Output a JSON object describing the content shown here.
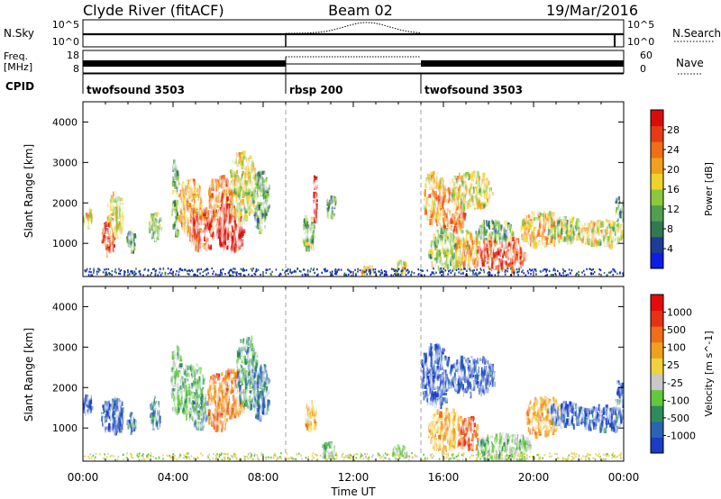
{
  "header": {
    "title": "Clyde River (fitACF)",
    "beam": "Beam 02",
    "date": "19/Mar/2016"
  },
  "noise_panel": {
    "left_label": "N.Sky",
    "left_ticks": [
      "10^5",
      "10^0"
    ],
    "right_ticks": [
      "10^5",
      "10^0"
    ],
    "right_label": "N.Search"
  },
  "freq_panel": {
    "label_line1": "Freq.",
    "label_line2": "[MHz]",
    "left_ticks": [
      "18",
      "8"
    ],
    "right_ticks": [
      "60",
      "0"
    ],
    "right_label": "Nave"
  },
  "cpid_panel": {
    "label": "CPID",
    "segments": [
      {
        "name": "twofsound 3503",
        "start_hour": 0,
        "end_hour": 9
      },
      {
        "name": "rbsp 200",
        "start_hour": 9,
        "end_hour": 15
      },
      {
        "name": "twofsound 3503",
        "start_hour": 15,
        "end_hour": 24
      }
    ]
  },
  "chart_data": [
    {
      "type": "heatmap",
      "name": "power",
      "ylabel": "Slant Range [km]",
      "yticks": [
        "1000",
        "2000",
        "3000",
        "4000"
      ],
      "ylim": [
        180,
        4500
      ],
      "xlim": [
        0,
        24
      ],
      "colorbar": {
        "label": "Power [dB]",
        "ticks": [
          "4",
          "8",
          "12",
          "16",
          "20",
          "24",
          "28"
        ],
        "range": [
          0,
          32
        ],
        "colors": [
          "#0a1ee6",
          "#1e3c96",
          "#327850",
          "#4ea050",
          "#8cc83c",
          "#f0d228",
          "#f0a01e",
          "#f06e14",
          "#e63c14",
          "#dc0a0a"
        ]
      },
      "blobs": [
        {
          "x0": 0.0,
          "x1": 0.35,
          "y0": 1450,
          "y1": 1900,
          "level": 0.55
        },
        {
          "x0": 0.8,
          "x1": 1.4,
          "y0": 800,
          "y1": 1700,
          "level": 0.85
        },
        {
          "x0": 1.1,
          "x1": 1.7,
          "y0": 1200,
          "y1": 2300,
          "level": 0.55
        },
        {
          "x0": 1.9,
          "x1": 2.3,
          "y0": 900,
          "y1": 1400,
          "level": 0.35
        },
        {
          "x0": 2.9,
          "x1": 3.4,
          "y0": 1100,
          "y1": 1800,
          "level": 0.4
        },
        {
          "x0": 3.9,
          "x1": 4.2,
          "y0": 1300,
          "y1": 3100,
          "level": 0.4
        },
        {
          "x0": 4.2,
          "x1": 5.2,
          "y0": 1300,
          "y1": 2600,
          "level": 0.65
        },
        {
          "x0": 4.7,
          "x1": 5.8,
          "y0": 900,
          "y1": 1900,
          "level": 0.85
        },
        {
          "x0": 5.5,
          "x1": 6.6,
          "y0": 1400,
          "y1": 2700,
          "level": 0.75
        },
        {
          "x0": 5.9,
          "x1": 7.1,
          "y0": 900,
          "y1": 2000,
          "level": 0.95
        },
        {
          "x0": 6.5,
          "x1": 7.6,
          "y0": 1600,
          "y1": 3300,
          "level": 0.55
        },
        {
          "x0": 7.5,
          "x1": 8.2,
          "y0": 1300,
          "y1": 2800,
          "level": 0.35
        },
        {
          "x0": 9.7,
          "x1": 10.2,
          "y0": 900,
          "y1": 1700,
          "level": 0.4
        },
        {
          "x0": 10.2,
          "x1": 10.3,
          "y0": 1600,
          "y1": 2700,
          "level": 0.95
        },
        {
          "x0": 10.8,
          "x1": 11.2,
          "y0": 1700,
          "y1": 2200,
          "level": 0.35
        },
        {
          "x0": 12.3,
          "x1": 12.8,
          "y0": 250,
          "y1": 500,
          "level": 0.6
        },
        {
          "x0": 13.8,
          "x1": 14.3,
          "y0": 300,
          "y1": 600,
          "level": 0.5
        },
        {
          "x0": 15.1,
          "x1": 16.0,
          "y0": 1600,
          "y1": 2800,
          "level": 0.65
        },
        {
          "x0": 15.6,
          "x1": 16.9,
          "y0": 1300,
          "y1": 2400,
          "level": 0.75
        },
        {
          "x0": 16.3,
          "x1": 18.1,
          "y0": 1900,
          "y1": 2800,
          "level": 0.55
        },
        {
          "x0": 15.3,
          "x1": 17.3,
          "y0": 400,
          "y1": 1400,
          "level": 0.45
        },
        {
          "x0": 16.5,
          "x1": 17.6,
          "y0": 500,
          "y1": 1300,
          "level": 0.65
        },
        {
          "x0": 17.5,
          "x1": 19.6,
          "y0": 400,
          "y1": 1200,
          "level": 0.85
        },
        {
          "x0": 17.4,
          "x1": 19.0,
          "y0": 1100,
          "y1": 1600,
          "level": 0.35
        },
        {
          "x0": 19.4,
          "x1": 21.2,
          "y0": 1000,
          "y1": 1800,
          "level": 0.65
        },
        {
          "x0": 20.6,
          "x1": 22.1,
          "y0": 1100,
          "y1": 1700,
          "level": 0.45
        },
        {
          "x0": 22.0,
          "x1": 23.9,
          "y0": 1000,
          "y1": 1600,
          "level": 0.55
        },
        {
          "x0": 23.6,
          "x1": 24.0,
          "y0": 1600,
          "y1": 2200,
          "level": 0.3
        }
      ]
    },
    {
      "type": "heatmap",
      "name": "velocity",
      "ylabel": "Slant Range [km]",
      "yticks": [
        "1000",
        "2000",
        "3000",
        "4000"
      ],
      "ylim": [
        180,
        4500
      ],
      "xlim": [
        0,
        24
      ],
      "xlabel": "Time UT",
      "xticks": [
        "00:00",
        "04:00",
        "08:00",
        "12:00",
        "16:00",
        "20:00",
        "00:00"
      ],
      "colorbar": {
        "label": "Velocity [m s^-1]",
        "ticks": [
          "1000",
          "500",
          "100",
          "25",
          "-25",
          "-100",
          "-500",
          "-1000"
        ],
        "colors": [
          "#1a3cc8",
          "#2a64b4",
          "#2e8c5a",
          "#62c83c",
          "#c8c8c8",
          "#f0d23c",
          "#f0a01e",
          "#f06e14",
          "#e63214",
          "#e60a0a"
        ]
      },
      "blobs": [
        {
          "x0": 0.0,
          "x1": 0.35,
          "y0": 1400,
          "y1": 1900,
          "level": 0.1
        },
        {
          "x0": 0.8,
          "x1": 1.3,
          "y0": 1000,
          "y1": 1700,
          "level": 0.1
        },
        {
          "x0": 1.2,
          "x1": 1.7,
          "y0": 900,
          "y1": 1800,
          "level": 0.1
        },
        {
          "x0": 1.9,
          "x1": 2.3,
          "y0": 1000,
          "y1": 1400,
          "level": 0.15
        },
        {
          "x0": 2.9,
          "x1": 3.4,
          "y0": 1100,
          "y1": 1800,
          "level": 0.2
        },
        {
          "x0": 3.9,
          "x1": 4.3,
          "y0": 1300,
          "y1": 3100,
          "level": 0.35
        },
        {
          "x0": 4.3,
          "x1": 5.3,
          "y0": 1300,
          "y1": 2600,
          "level": 0.3
        },
        {
          "x0": 4.8,
          "x1": 5.5,
          "y0": 1000,
          "y1": 1900,
          "level": 0.25
        },
        {
          "x0": 5.5,
          "x1": 6.4,
          "y0": 1000,
          "y1": 2400,
          "level": 0.72
        },
        {
          "x0": 6.1,
          "x1": 7.1,
          "y0": 1300,
          "y1": 2500,
          "level": 0.72
        },
        {
          "x0": 6.8,
          "x1": 7.7,
          "y0": 1600,
          "y1": 3300,
          "level": 0.25
        },
        {
          "x0": 7.5,
          "x1": 8.2,
          "y0": 1300,
          "y1": 2600,
          "level": 0.15
        },
        {
          "x0": 9.8,
          "x1": 10.3,
          "y0": 1000,
          "y1": 1700,
          "level": 0.6
        },
        {
          "x0": 10.6,
          "x1": 11.1,
          "y0": 300,
          "y1": 700,
          "level": 0.35
        },
        {
          "x0": 13.7,
          "x1": 14.3,
          "y0": 300,
          "y1": 600,
          "level": 0.35
        },
        {
          "x0": 15.0,
          "x1": 16.2,
          "y0": 1600,
          "y1": 3100,
          "level": 0.1
        },
        {
          "x0": 16.2,
          "x1": 18.2,
          "y0": 1900,
          "y1": 2800,
          "level": 0.1
        },
        {
          "x0": 15.3,
          "x1": 16.8,
          "y0": 500,
          "y1": 1500,
          "level": 0.62
        },
        {
          "x0": 16.6,
          "x1": 17.5,
          "y0": 500,
          "y1": 1300,
          "level": 0.8
        },
        {
          "x0": 17.5,
          "x1": 19.8,
          "y0": 200,
          "y1": 900,
          "level": 0.36
        },
        {
          "x0": 19.6,
          "x1": 21.2,
          "y0": 900,
          "y1": 1800,
          "level": 0.65
        },
        {
          "x0": 20.6,
          "x1": 22.1,
          "y0": 1100,
          "y1": 1700,
          "level": 0.12
        },
        {
          "x0": 22.0,
          "x1": 23.9,
          "y0": 1000,
          "y1": 1600,
          "level": 0.1
        },
        {
          "x0": 23.6,
          "x1": 24.0,
          "y0": 1600,
          "y1": 2200,
          "level": 0.1
        }
      ]
    }
  ]
}
